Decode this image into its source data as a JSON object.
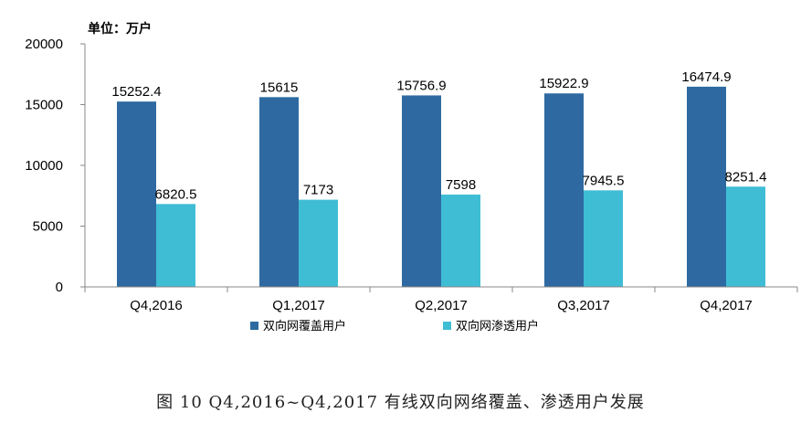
{
  "chart_data": {
    "type": "bar",
    "unit_label": "单位：万户",
    "categories": [
      "Q4,2016",
      "Q1,2017",
      "Q2,2017",
      "Q3,2017",
      "Q4,2017"
    ],
    "series": [
      {
        "name": "双向网覆盖用户",
        "color": "#2e6aa1",
        "values": [
          15252.4,
          15615,
          15756.9,
          15922.9,
          16474.9
        ],
        "labels": [
          "15252.4",
          "15615",
          "15756.9",
          "15922.9",
          "16474.9"
        ]
      },
      {
        "name": "双向网渗透用户",
        "color": "#3fbdd5",
        "values": [
          6820.5,
          7173,
          7598,
          7945.5,
          8251.4
        ],
        "labels": [
          "6820.5",
          "7173",
          "7598",
          "7945.5",
          "8251.4"
        ]
      }
    ],
    "yticks": [
      "0",
      "5000",
      "10000",
      "15000",
      "20000"
    ],
    "ylim": [
      0,
      20000
    ],
    "grid": false,
    "legend_position": "bottom"
  },
  "caption": "图 10 Q4,2016~Q4,2017 有线双向网络覆盖、渗透用户发展"
}
